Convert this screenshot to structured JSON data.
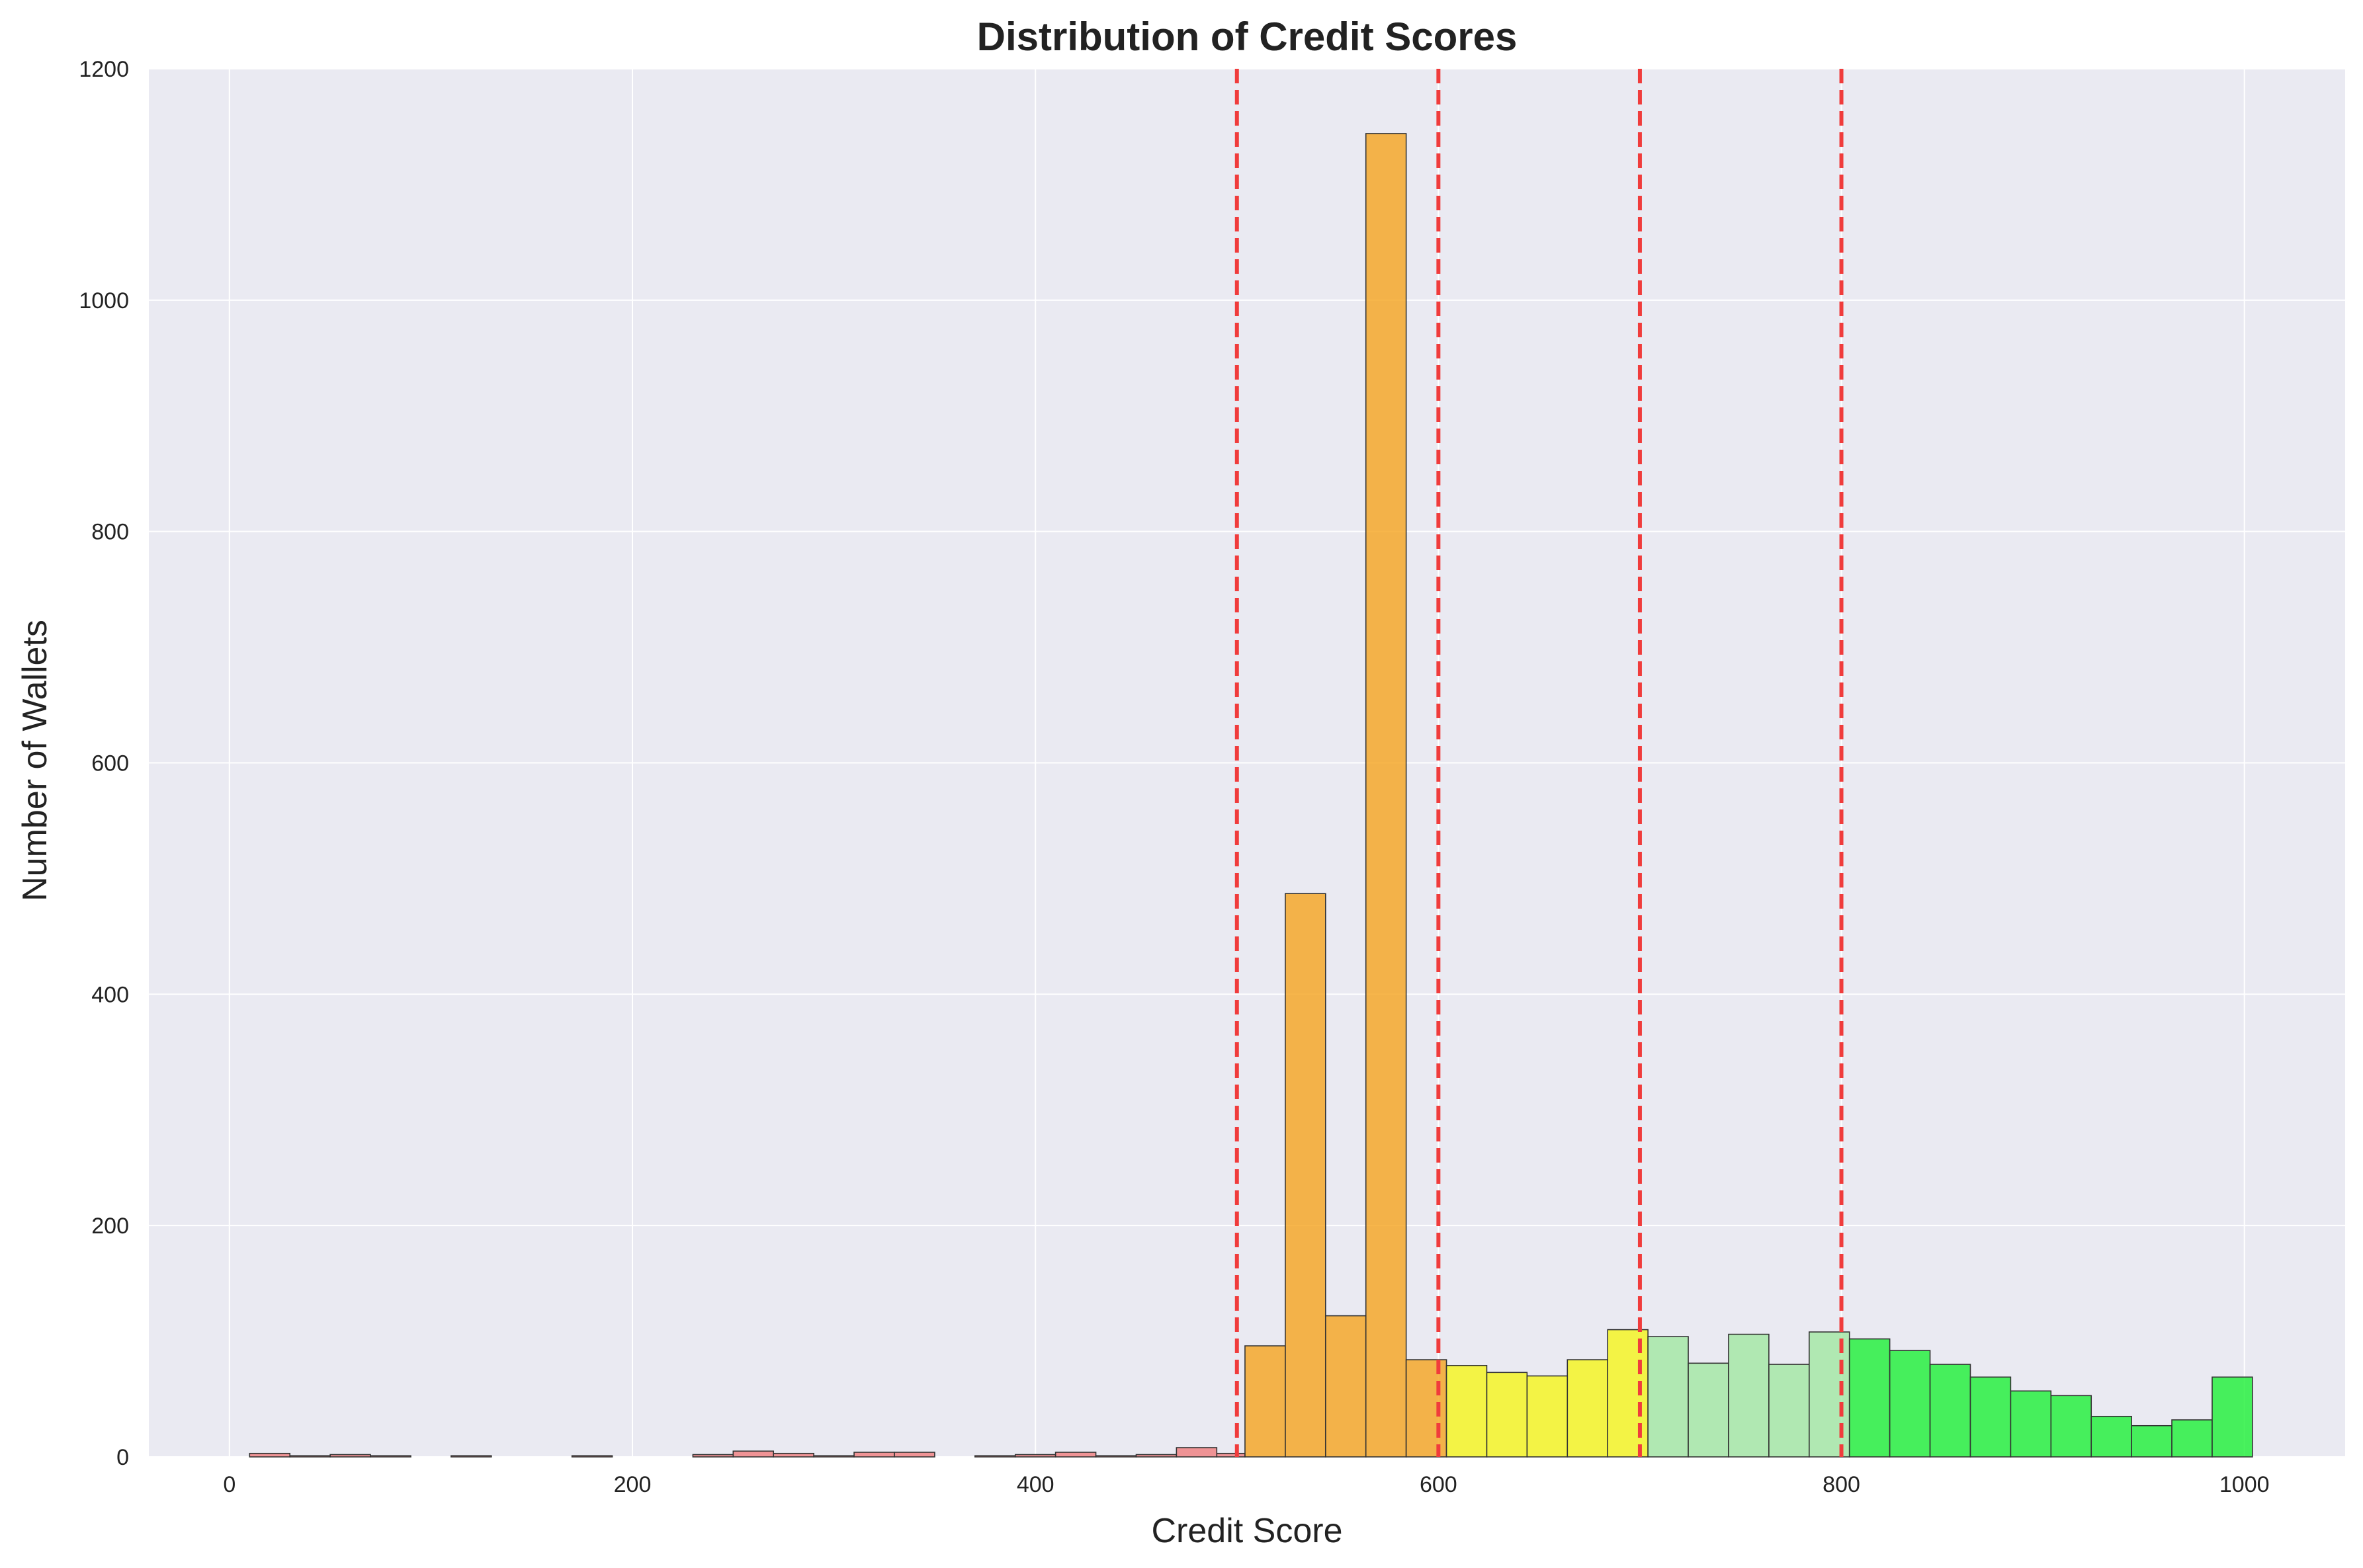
{
  "chart_data": {
    "type": "bar",
    "subtype": "histogram",
    "title": "Distribution of Credit Scores",
    "xlabel": "Credit Score",
    "ylabel": "Number of Wallets",
    "xlim": [
      -40,
      1050
    ],
    "ylim": [
      0,
      1200
    ],
    "xticks": [
      0,
      200,
      400,
      600,
      800,
      1000
    ],
    "yticks": [
      0,
      200,
      400,
      600,
      800,
      1000,
      1200
    ],
    "grid": true,
    "background_color": "#eaeaf2",
    "bin_edge_color": "#333333",
    "bins": [
      {
        "x0": 10,
        "x1": 30,
        "count": 3,
        "color": "#f08080"
      },
      {
        "x0": 30,
        "x1": 50,
        "count": 1,
        "color": "#f08080"
      },
      {
        "x0": 50,
        "x1": 70,
        "count": 2,
        "color": "#f08080"
      },
      {
        "x0": 70,
        "x1": 90,
        "count": 1,
        "color": "#f08080"
      },
      {
        "x0": 110,
        "x1": 130,
        "count": 1,
        "color": "#f08080"
      },
      {
        "x0": 170,
        "x1": 190,
        "count": 1,
        "color": "#f08080"
      },
      {
        "x0": 230,
        "x1": 250,
        "count": 2,
        "color": "#f08080"
      },
      {
        "x0": 250,
        "x1": 270,
        "count": 5,
        "color": "#f08080"
      },
      {
        "x0": 270,
        "x1": 290,
        "count": 3,
        "color": "#f08080"
      },
      {
        "x0": 290,
        "x1": 310,
        "count": 1,
        "color": "#f08080"
      },
      {
        "x0": 310,
        "x1": 330,
        "count": 4,
        "color": "#f08080"
      },
      {
        "x0": 330,
        "x1": 350,
        "count": 4,
        "color": "#f08080"
      },
      {
        "x0": 370,
        "x1": 390,
        "count": 1,
        "color": "#f08080"
      },
      {
        "x0": 390,
        "x1": 410,
        "count": 2,
        "color": "#f08080"
      },
      {
        "x0": 410,
        "x1": 430,
        "count": 4,
        "color": "#f08080"
      },
      {
        "x0": 430,
        "x1": 450,
        "count": 1,
        "color": "#f08080"
      },
      {
        "x0": 450,
        "x1": 470,
        "count": 2,
        "color": "#f08080"
      },
      {
        "x0": 470,
        "x1": 490,
        "count": 8,
        "color": "#f08080"
      },
      {
        "x0": 490,
        "x1": 504,
        "count": 3,
        "color": "#f08080"
      },
      {
        "x0": 504,
        "x1": 524,
        "count": 96,
        "color": "#f5a623"
      },
      {
        "x0": 524,
        "x1": 544,
        "count": 487,
        "color": "#f5a623"
      },
      {
        "x0": 544,
        "x1": 564,
        "count": 122,
        "color": "#f5a623"
      },
      {
        "x0": 564,
        "x1": 584,
        "count": 1144,
        "color": "#f5a623"
      },
      {
        "x0": 584,
        "x1": 604,
        "count": 84,
        "color": "#f5a623"
      },
      {
        "x0": 604,
        "x1": 624,
        "count": 79,
        "color": "#f5f51e"
      },
      {
        "x0": 624,
        "x1": 644,
        "count": 73,
        "color": "#f5f51e"
      },
      {
        "x0": 644,
        "x1": 664,
        "count": 70,
        "color": "#f5f51e"
      },
      {
        "x0": 664,
        "x1": 684,
        "count": 84,
        "color": "#f5f51e"
      },
      {
        "x0": 684,
        "x1": 704,
        "count": 110,
        "color": "#f5f51e"
      },
      {
        "x0": 704,
        "x1": 724,
        "count": 104,
        "color": "#a3e8a3"
      },
      {
        "x0": 724,
        "x1": 744,
        "count": 81,
        "color": "#a3e8a3"
      },
      {
        "x0": 744,
        "x1": 764,
        "count": 106,
        "color": "#a3e8a3"
      },
      {
        "x0": 764,
        "x1": 784,
        "count": 80,
        "color": "#a3e8a3"
      },
      {
        "x0": 784,
        "x1": 804,
        "count": 108,
        "color": "#a3e8a3"
      },
      {
        "x0": 804,
        "x1": 824,
        "count": 102,
        "color": "#22f03a"
      },
      {
        "x0": 824,
        "x1": 844,
        "count": 92,
        "color": "#22f03a"
      },
      {
        "x0": 844,
        "x1": 864,
        "count": 80,
        "color": "#22f03a"
      },
      {
        "x0": 864,
        "x1": 884,
        "count": 69,
        "color": "#22f03a"
      },
      {
        "x0": 884,
        "x1": 904,
        "count": 57,
        "color": "#22f03a"
      },
      {
        "x0": 904,
        "x1": 924,
        "count": 53,
        "color": "#22f03a"
      },
      {
        "x0": 924,
        "x1": 944,
        "count": 35,
        "color": "#22f03a"
      },
      {
        "x0": 944,
        "x1": 964,
        "count": 27,
        "color": "#22f03a"
      },
      {
        "x0": 964,
        "x1": 984,
        "count": 32,
        "color": "#22f03a"
      },
      {
        "x0": 984,
        "x1": 1004,
        "count": 69,
        "color": "#22f03a"
      }
    ],
    "reference_lines": [
      {
        "x": 500,
        "color": "#f03c3c",
        "style": "dashed"
      },
      {
        "x": 600,
        "color": "#f03c3c",
        "style": "dashed"
      },
      {
        "x": 700,
        "color": "#f03c3c",
        "style": "dashed"
      },
      {
        "x": 800,
        "color": "#f03c3c",
        "style": "dashed"
      }
    ]
  }
}
